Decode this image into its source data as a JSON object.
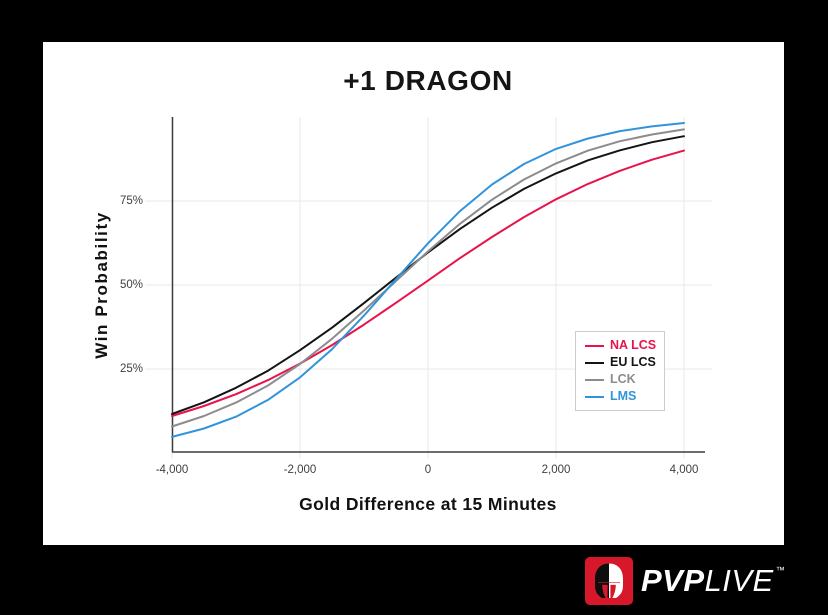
{
  "chart_data": {
    "type": "line",
    "title": "+1 DRAGON",
    "xlabel": "Gold Difference at 15 Minutes",
    "ylabel": "Win Probability",
    "x": [
      -4000,
      -3500,
      -3000,
      -2500,
      -2000,
      -1500,
      -1000,
      -500,
      0,
      500,
      1000,
      1500,
      2000,
      2500,
      3000,
      3500,
      4000
    ],
    "series": [
      {
        "name": "NA LCS",
        "color": "#E8134B",
        "values": [
          11.0,
          14.0,
          17.5,
          21.7,
          26.6,
          32.1,
          38.2,
          44.7,
          51.3,
          58.0,
          64.3,
          70.2,
          75.5,
          80.1,
          84.0,
          87.3,
          90.0
        ]
      },
      {
        "name": "EU LCS",
        "color": "#141414",
        "values": [
          11.6,
          15.1,
          19.4,
          24.5,
          30.6,
          37.3,
          44.6,
          52.2,
          59.7,
          66.7,
          73.0,
          78.6,
          83.2,
          87.1,
          90.1,
          92.5,
          94.3
        ]
      },
      {
        "name": "LCK",
        "color": "#8C8C8C",
        "values": [
          7.9,
          11.0,
          15.0,
          20.1,
          26.5,
          34.0,
          42.4,
          51.2,
          60.0,
          68.2,
          75.4,
          81.4,
          86.2,
          90.0,
          92.8,
          94.8,
          96.3
        ]
      },
      {
        "name": "LMS",
        "color": "#3194DB",
        "values": [
          4.8,
          7.3,
          10.8,
          15.8,
          22.5,
          30.9,
          40.9,
          51.7,
          62.4,
          72.0,
          79.9,
          86.0,
          90.5,
          93.6,
          95.8,
          97.2,
          98.2
        ]
      }
    ],
    "xticks": {
      "values": [
        -4000,
        -2000,
        0,
        2000,
        4000
      ],
      "labels": [
        "-4,000",
        "-2,000",
        "0",
        "2,000",
        "4,000"
      ]
    },
    "yticks": {
      "values": [
        25,
        50,
        75
      ],
      "labels": [
        "25%",
        "50%",
        "75%"
      ]
    },
    "xlim": [
      -4000,
      4000
    ],
    "ylim": [
      0,
      100
    ],
    "grid": true,
    "legend_position": "lower right",
    "grid_color": "#E9E9E9",
    "axis_color": "#3D3D3D"
  },
  "footer": {
    "brand_bold": "PVP",
    "brand_light": "LIVE",
    "trademark": "™",
    "logo_color": "#D7182A",
    "helmet_left_color": "#0E0E0E",
    "helmet_right_color": "#FFFFFF"
  }
}
